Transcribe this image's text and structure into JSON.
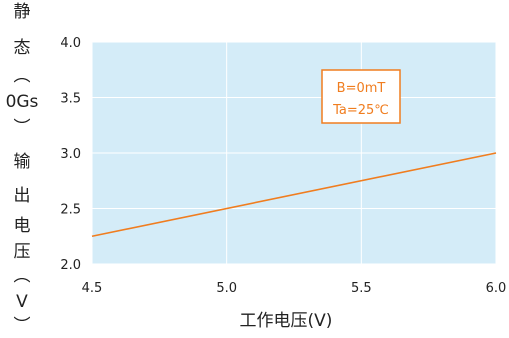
{
  "chart_data": {
    "type": "line",
    "xlabel": "工作电压(V)",
    "ylabel": "静态(0Gs)输出电压(V)",
    "xlim": [
      4.5,
      6.0
    ],
    "ylim": [
      2.0,
      4.0
    ],
    "x_ticks": [
      "4.5",
      "5.0",
      "5.5",
      "6.0"
    ],
    "y_ticks": [
      "2.0",
      "2.5",
      "3.0",
      "3.5",
      "4.0"
    ],
    "grid": true,
    "series": [
      {
        "x": [
          4.5,
          6.0
        ],
        "y": [
          2.25,
          3.0
        ],
        "color": "#f07d1f"
      }
    ],
    "annotation": [
      "B=0mT",
      "Ta=25℃"
    ],
    "colors": {
      "plot_background": "#d4ecf8",
      "grid": "#ffffff",
      "line": "#f07d1f",
      "annotation_border": "#f07d1f",
      "annotation_text": "#f07d1f",
      "text": "#222222"
    }
  },
  "ylabel_chars": [
    "静",
    "态",
    "︵",
    "0Gs",
    "︶",
    "输",
    "出",
    "电",
    "压",
    "︵",
    "V",
    "︶"
  ]
}
